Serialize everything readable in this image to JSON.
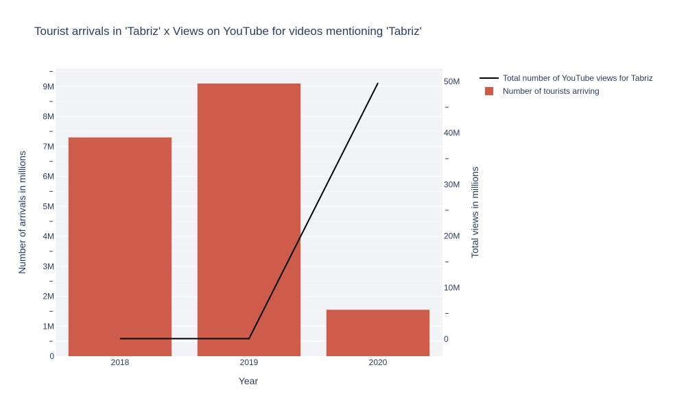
{
  "chart_data": {
    "type": "bar",
    "title": "Tourist arrivals in 'Tabriz' x Views on YouTube for videos mentioning 'Tabriz'",
    "xlabel": "Year",
    "ylabel": "Number of arrivals in millions",
    "y2label": "Total views in millions",
    "categories": [
      "2018",
      "2019",
      "2020"
    ],
    "ylim": [
      0,
      9.6
    ],
    "y2lim": [
      -3.3,
      52.5
    ],
    "yticks": [
      {
        "value": 0,
        "label": "0"
      },
      {
        "value": 1,
        "label": "1M"
      },
      {
        "value": 2,
        "label": "2M"
      },
      {
        "value": 3,
        "label": "3M"
      },
      {
        "value": 4,
        "label": "4M"
      },
      {
        "value": 5,
        "label": "5M"
      },
      {
        "value": 6,
        "label": "6M"
      },
      {
        "value": 7,
        "label": "7M"
      },
      {
        "value": 8,
        "label": "8M"
      },
      {
        "value": 9,
        "label": "9M"
      }
    ],
    "y2ticks": [
      {
        "value": 0,
        "label": "0"
      },
      {
        "value": 10,
        "label": "10M"
      },
      {
        "value": 20,
        "label": "20M"
      },
      {
        "value": 30,
        "label": "30M"
      },
      {
        "value": 40,
        "label": "40M"
      },
      {
        "value": 50,
        "label": "50M"
      }
    ],
    "grid": true,
    "legend_position": "top-right",
    "series": [
      {
        "name": "Number of tourists arriving",
        "type": "bar",
        "axis": "y",
        "color": "#cd5c4a",
        "values": [
          7.3,
          9.1,
          1.55
        ]
      },
      {
        "name": "Total number of YouTube views for Tabriz",
        "type": "line",
        "axis": "y2",
        "color": "#000000",
        "values": [
          0.1,
          0.1,
          49.7
        ]
      }
    ],
    "legend_order": [
      1,
      0
    ]
  }
}
